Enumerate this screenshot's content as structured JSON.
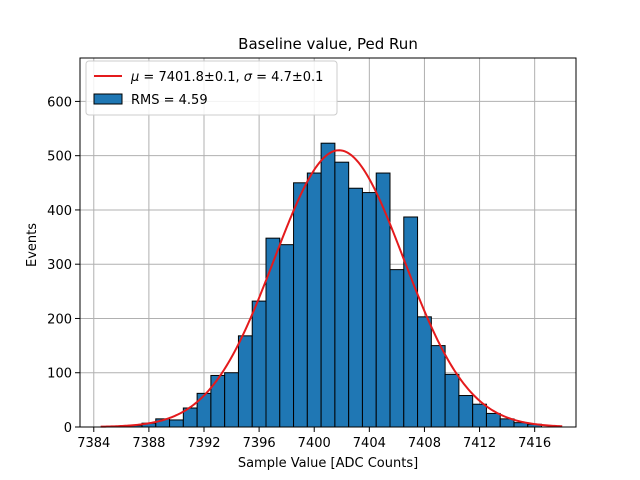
{
  "chart_data": {
    "type": "bar",
    "title": "Baseline value, Ped Run",
    "xlabel": "Sample Value [ADC Counts]",
    "ylabel": "Events",
    "xlim": [
      7383,
      7419
    ],
    "ylim": [
      0,
      680
    ],
    "x_ticks": [
      "7384",
      "7388",
      "7392",
      "7396",
      "7400",
      "7404",
      "7408",
      "7412",
      "7416"
    ],
    "y_ticks": [
      "0",
      "100",
      "200",
      "300",
      "400",
      "500",
      "600"
    ],
    "x_tick_values": [
      7384,
      7388,
      7392,
      7396,
      7400,
      7404,
      7408,
      7412,
      7416
    ],
    "y_tick_values": [
      0,
      100,
      200,
      300,
      400,
      500,
      600
    ],
    "grid": true,
    "legend_position": "top-left",
    "histogram": {
      "name": "RMS = 4.59",
      "color": "#1f77b4",
      "edgecolor": "#000000",
      "bin_edges": [
        7384.5,
        7385.5,
        7386.5,
        7387.5,
        7388.5,
        7389.5,
        7390.5,
        7391.5,
        7392.5,
        7393.5,
        7394.5,
        7395.5,
        7396.5,
        7397.5,
        7398.5,
        7399.5,
        7400.5,
        7401.5,
        7402.5,
        7403.5,
        7404.5,
        7405.5,
        7406.5,
        7407.5,
        7408.5,
        7409.5,
        7410.5,
        7411.5,
        7412.5,
        7413.5,
        7414.5,
        7415.5,
        7416.5
      ],
      "counts": [
        0,
        0,
        3,
        7,
        15,
        13,
        35,
        62,
        95,
        100,
        168,
        232,
        348,
        336,
        450,
        468,
        523,
        488,
        440,
        432,
        468,
        290,
        387,
        203,
        150,
        97,
        58,
        42,
        25,
        15,
        8,
        5
      ]
    },
    "fit": {
      "label": "μ = 7401.8±0.1, σ = 4.7±0.1",
      "label_mu": "μ",
      "label_mu_value": " = 7401.8±0.1, ",
      "label_sigma": "σ",
      "label_sigma_value": " = 4.7±0.1",
      "color": "#e41a1c",
      "type": "gaussian",
      "mu": 7401.8,
      "sigma": 4.7,
      "amplitude": 510,
      "x_range": [
        7384.5,
        7418.0
      ]
    }
  }
}
